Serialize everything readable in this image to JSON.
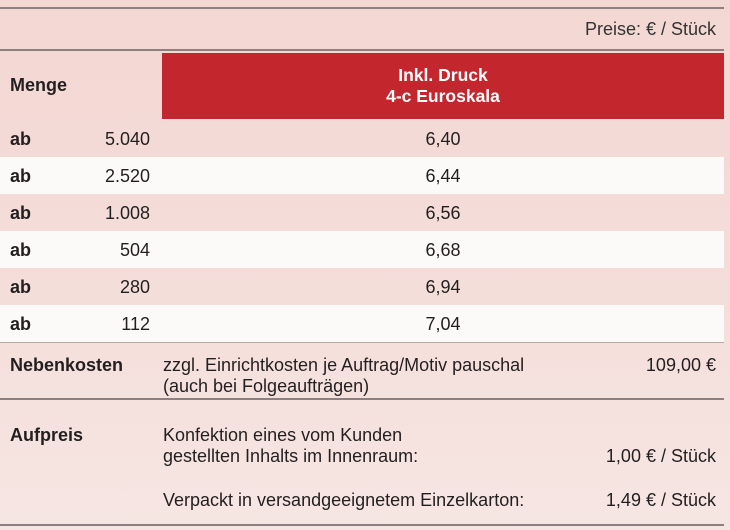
{
  "header": {
    "unit_note": "Preise: € / Stück",
    "quantity_label": "Menge",
    "column_title_line1": "Inkl. Druck",
    "column_title_line2": "4-c Euroskala"
  },
  "rows": [
    {
      "prefix": "ab",
      "quantity": "5.040",
      "price": "6,40"
    },
    {
      "prefix": "ab",
      "quantity": "2.520",
      "price": "6,44"
    },
    {
      "prefix": "ab",
      "quantity": "1.008",
      "price": "6,56"
    },
    {
      "prefix": "ab",
      "quantity": "504",
      "price": "6,68"
    },
    {
      "prefix": "ab",
      "quantity": "280",
      "price": "6,94"
    },
    {
      "prefix": "ab",
      "quantity": "112",
      "price": "7,04"
    }
  ],
  "nebenkosten": {
    "label": "Nebenkosten",
    "line1": "zzgl. Einrichtkosten je Auftrag/Motiv pauschal",
    "line2": "(auch bei Folgeaufträgen)",
    "price": "109,00 €"
  },
  "aufpreis": {
    "label": "Aufpreis",
    "item1_line1": "Konfektion eines vom Kunden",
    "item1_line2": "gestellten Inhalts im Innenraum:",
    "item1_price": "1,00 € / Stück",
    "item2_text": "Verpackt in versandgeeignetem Einzelkarton:",
    "item2_price": "1,49 € / Stück"
  },
  "colors": {
    "accent_red": "#c4262e",
    "background_pink": "#f3d7d3"
  }
}
